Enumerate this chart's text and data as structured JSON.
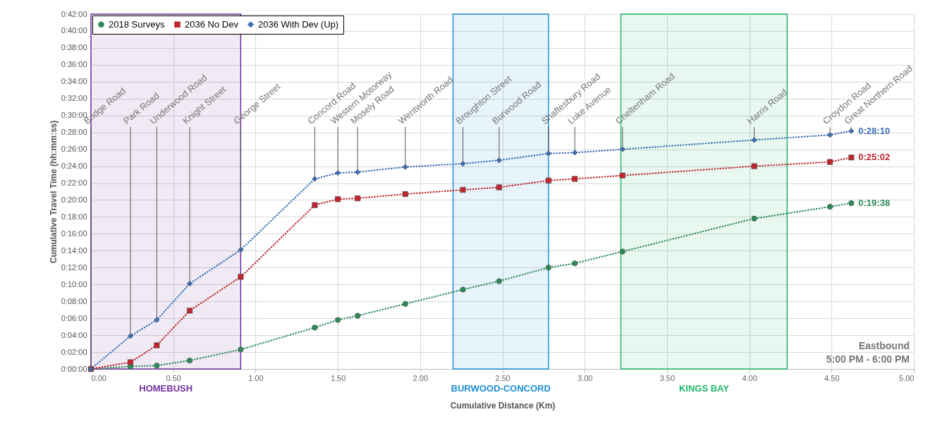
{
  "chart_data": {
    "type": "line",
    "xlabel": "Cumulative Distance (Km)",
    "ylabel": "Cumulative Travel Time  (hh:mm:ss)",
    "x": [
      0,
      0.24,
      0.4,
      0.6,
      0.91,
      1.36,
      1.5,
      1.62,
      1.91,
      2.26,
      2.48,
      2.78,
      2.94,
      3.23,
      4.03,
      4.49,
      4.62
    ],
    "series": [
      {
        "name": "2018 Surveys",
        "color": "#2e8b57",
        "marker": "circle",
        "values": [
          0,
          0.3,
          0.4,
          1.0,
          2.3,
          4.9,
          5.8,
          6.3,
          7.7,
          9.4,
          10.4,
          12.0,
          12.5,
          13.9,
          17.8,
          19.2,
          19.63
        ],
        "value_labels": [
          null,
          null,
          null,
          null,
          null,
          null,
          null,
          null,
          null,
          null,
          null,
          null,
          null,
          null,
          null,
          null,
          "0:19:38"
        ]
      },
      {
        "name": "2036 No Dev",
        "color": "#c0272d",
        "marker": "square",
        "values": [
          0,
          0.8,
          2.8,
          6.9,
          10.9,
          19.4,
          20.1,
          20.2,
          20.7,
          21.2,
          21.5,
          22.3,
          22.5,
          22.9,
          24.0,
          24.5,
          25.03
        ],
        "value_labels": [
          null,
          null,
          null,
          null,
          null,
          null,
          null,
          null,
          null,
          null,
          null,
          null,
          null,
          null,
          null,
          null,
          "0:25:02"
        ]
      },
      {
        "name": "2036 With Dev (Up)",
        "color": "#3b6eb4",
        "marker": "diamond",
        "values": [
          0,
          3.9,
          5.8,
          10.1,
          14.1,
          22.5,
          23.2,
          23.3,
          23.9,
          24.3,
          24.7,
          25.5,
          25.6,
          26.0,
          27.1,
          27.7,
          28.17
        ],
        "value_labels": [
          null,
          null,
          null,
          null,
          null,
          null,
          null,
          null,
          null,
          null,
          null,
          null,
          null,
          null,
          null,
          null,
          "0:28:10"
        ]
      }
    ],
    "xlim": [
      0,
      5
    ],
    "xticks": [
      {
        "value": 0,
        "label": "0.00"
      },
      {
        "value": 0.5,
        "label": "0.50"
      },
      {
        "value": 1,
        "label": "1.00"
      },
      {
        "value": 1.5,
        "label": "1.50"
      },
      {
        "value": 2,
        "label": "2.00"
      },
      {
        "value": 2.5,
        "label": "2.50"
      },
      {
        "value": 3,
        "label": "3.00"
      },
      {
        "value": 3.5,
        "label": "3.50"
      },
      {
        "value": 4,
        "label": "4.00"
      },
      {
        "value": 4.5,
        "label": "4.50"
      },
      {
        "value": 5,
        "label": "5.00"
      }
    ],
    "ylim": [
      0,
      42
    ],
    "yticks": [
      {
        "value": 0,
        "label": "0:00:00"
      },
      {
        "value": 2,
        "label": "0:02:00"
      },
      {
        "value": 4,
        "label": "0:04:00"
      },
      {
        "value": 6,
        "label": "0:06:00"
      },
      {
        "value": 8,
        "label": "0:08:00"
      },
      {
        "value": 10,
        "label": "0:10:00"
      },
      {
        "value": 12,
        "label": "0:12:00"
      },
      {
        "value": 14,
        "label": "0:14:00"
      },
      {
        "value": 16,
        "label": "0:16:00"
      },
      {
        "value": 18,
        "label": "0:18:00"
      },
      {
        "value": 20,
        "label": "0:20:00"
      },
      {
        "value": 22,
        "label": "0:22:00"
      },
      {
        "value": 24,
        "label": "0:24:00"
      },
      {
        "value": 26,
        "label": "0:26:00"
      },
      {
        "value": 28,
        "label": "0:28:00"
      },
      {
        "value": 30,
        "label": "0:30:00"
      },
      {
        "value": 32,
        "label": "0:32:00"
      },
      {
        "value": 34,
        "label": "0:34:00"
      },
      {
        "value": 36,
        "label": "0:36:00"
      },
      {
        "value": 38,
        "label": "0:38:00"
      },
      {
        "value": 40,
        "label": "0:40:00"
      },
      {
        "value": 42,
        "label": "0:42:00"
      }
    ],
    "bands": [
      {
        "axis": "x",
        "from": 0,
        "to": 0.91,
        "label": "HOMEBUSH",
        "color": "#7030a0"
      },
      {
        "axis": "x",
        "from": 2.2,
        "to": 2.78,
        "label": "BURWOOD-CONCORD",
        "color": "#1f8fd8"
      },
      {
        "axis": "x",
        "from": 3.22,
        "to": 4.23,
        "label": "KINGS BAY",
        "color": "#1fb86a"
      }
    ],
    "annotations": [
      {
        "text": "Bridge Road",
        "x": 0
      },
      {
        "text": "Park Road",
        "x": 0.24,
        "y": 3.9
      },
      {
        "text": "Underwood Road",
        "x": 0.4,
        "y": 5.8
      },
      {
        "text": "Knight Street",
        "x": 0.6,
        "y": 10.1
      },
      {
        "text": "George Street",
        "x": 0.91,
        "y": 14.1
      },
      {
        "text": "Concord Road",
        "x": 1.36,
        "y": 22.5
      },
      {
        "text": "Western Motorway",
        "x": 1.5,
        "y": 23.2
      },
      {
        "text": "Mosely Road",
        "x": 1.62,
        "y": 23.3
      },
      {
        "text": "Wentworth Road",
        "x": 1.91,
        "y": 23.9
      },
      {
        "text": "Broughton Street",
        "x": 2.26,
        "y": 24.3
      },
      {
        "text": "Burwood Road",
        "x": 2.48,
        "y": 24.7
      },
      {
        "text": "Shaftesbury Road",
        "x": 2.78,
        "y": 25.5
      },
      {
        "text": "Luke Avenue",
        "x": 2.94,
        "y": 25.6
      },
      {
        "text": "Cheltenham Road",
        "x": 3.23,
        "y": 26.0
      },
      {
        "text": "Harris Road",
        "x": 4.03,
        "y": 27.1
      },
      {
        "text": "Croydon Road",
        "x": 4.49,
        "y": 27.7
      },
      {
        "text": "Great Northern Road",
        "x": 4.62,
        "y": 28.17
      },
      "Eastbound",
      "5:00 PM - 6:00 PM"
    ],
    "grid": true,
    "legend": "top left",
    "line_style": "dotted"
  }
}
